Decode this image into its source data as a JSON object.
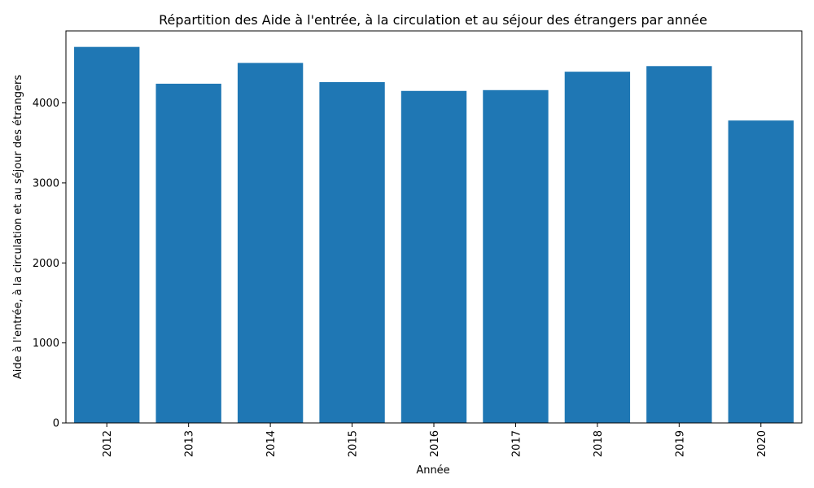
{
  "chart_data": {
    "type": "bar",
    "title": "Répartition des Aide à l'entrée, à la circulation et au séjour des étrangers par année",
    "xlabel": "Année",
    "ylabel": "Aide à l'entrée, à la circulation et au séjour des étrangers",
    "categories": [
      "2012",
      "2013",
      "2014",
      "2015",
      "2016",
      "2017",
      "2018",
      "2019",
      "2020"
    ],
    "values": [
      4700,
      4240,
      4500,
      4260,
      4150,
      4160,
      4390,
      4460,
      3780
    ],
    "ylim": [
      0,
      4900
    ],
    "yticks": [
      0,
      1000,
      2000,
      3000,
      4000
    ],
    "ytick_labels": [
      "0",
      "1000",
      "2000",
      "3000",
      "4000"
    ],
    "xtick_rotation": "vertical",
    "grid": false,
    "legend": "none",
    "bar_color": "#1f77b4"
  }
}
